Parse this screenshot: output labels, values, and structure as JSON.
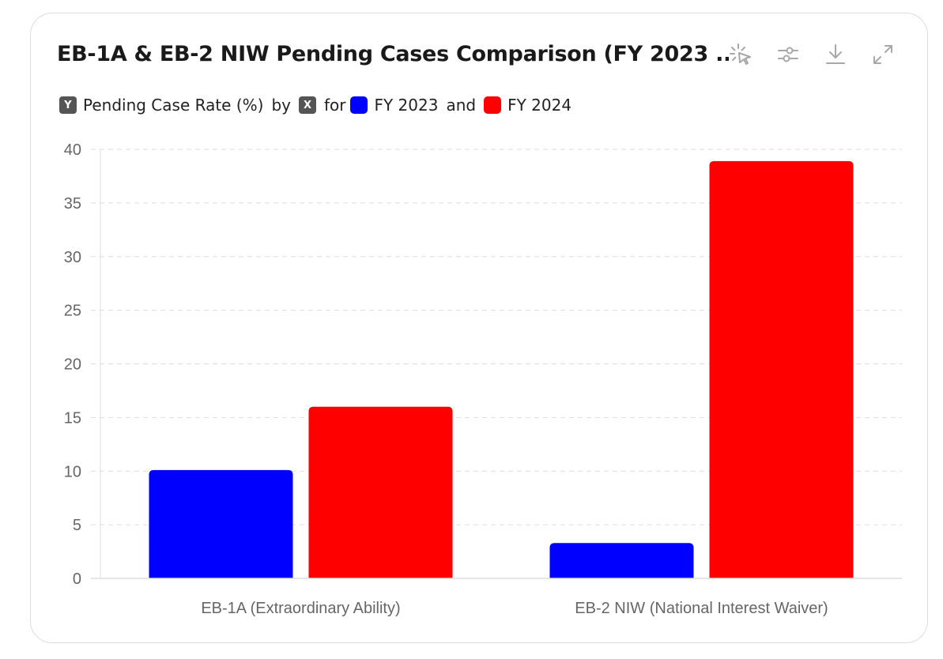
{
  "header": {
    "title": "EB-1A & EB-2 NIW Pending Cases Comparison (FY 2023 ..."
  },
  "toolbar": {
    "icons": [
      "select-cursor-icon",
      "sliders-icon",
      "download-icon",
      "expand-icon"
    ]
  },
  "legend": {
    "y_badge": "Y",
    "y_label": "Pending Case Rate (%)",
    "by_text": "by",
    "x_badge": "X",
    "for_text": "for",
    "series_1": "FY 2023",
    "and_text": "and",
    "series_2": "FY 2024"
  },
  "chart_data": {
    "type": "bar",
    "categories": [
      "EB-1A (Extraordinary Ability)",
      "EB-2 NIW (National Interest Waiver)"
    ],
    "series": [
      {
        "name": "FY 2023",
        "values": [
          10.1,
          3.3
        ],
        "color": "#0000ff"
      },
      {
        "name": "FY 2024",
        "values": [
          16.0,
          38.9
        ],
        "color": "#ff0000"
      }
    ],
    "ylim": [
      0,
      40
    ],
    "yticks": [
      0,
      5,
      10,
      15,
      20,
      25,
      30,
      35,
      40
    ],
    "grid": true,
    "legend_position": "top-left"
  }
}
